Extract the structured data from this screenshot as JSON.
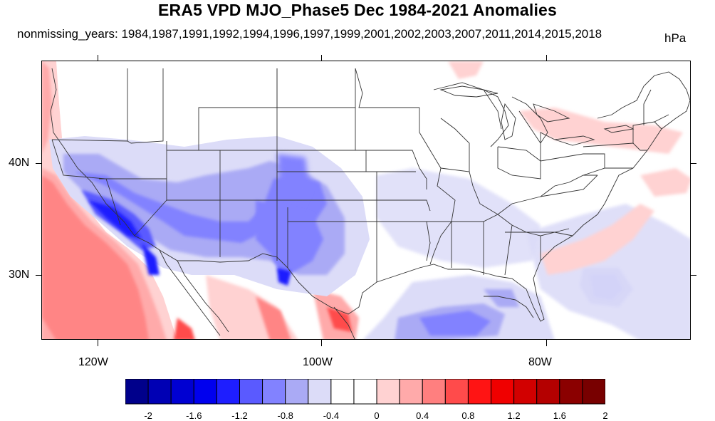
{
  "title": "ERA5 VPD MJO_Phase5 Dec 1984-2021 Anomalies",
  "subtitle": "nonmissing_years: 1984,1987,1991,1992,1994,1996,1997,1999,2001,2002,2003,2007,2011,2014,2015,2018",
  "units": "hPa",
  "map": {
    "region": "Contiguous United States",
    "lat_labels": [
      "40N",
      "30N"
    ],
    "lon_labels": [
      "120W",
      "100W",
      "80W"
    ]
  },
  "colorbar": {
    "labels": [
      "-2",
      "-1.6",
      "-1.2",
      "-0.8",
      "-0.4",
      "0",
      "0.4",
      "0.8",
      "1.2",
      "1.6",
      "2"
    ],
    "colors": [
      "#00008b",
      "#0000b4",
      "#0000d2",
      "#0000ee",
      "#1e1eff",
      "#5a5aff",
      "#8282ff",
      "#aaaaf5",
      "#dcdcf8",
      "#ffffff",
      "#ffffff",
      "#ffd2d2",
      "#ffaaaa",
      "#ff7f7f",
      "#ff4b4b",
      "#ff1414",
      "#f00000",
      "#d20000",
      "#b40000",
      "#8b0000",
      "#780000"
    ]
  }
}
